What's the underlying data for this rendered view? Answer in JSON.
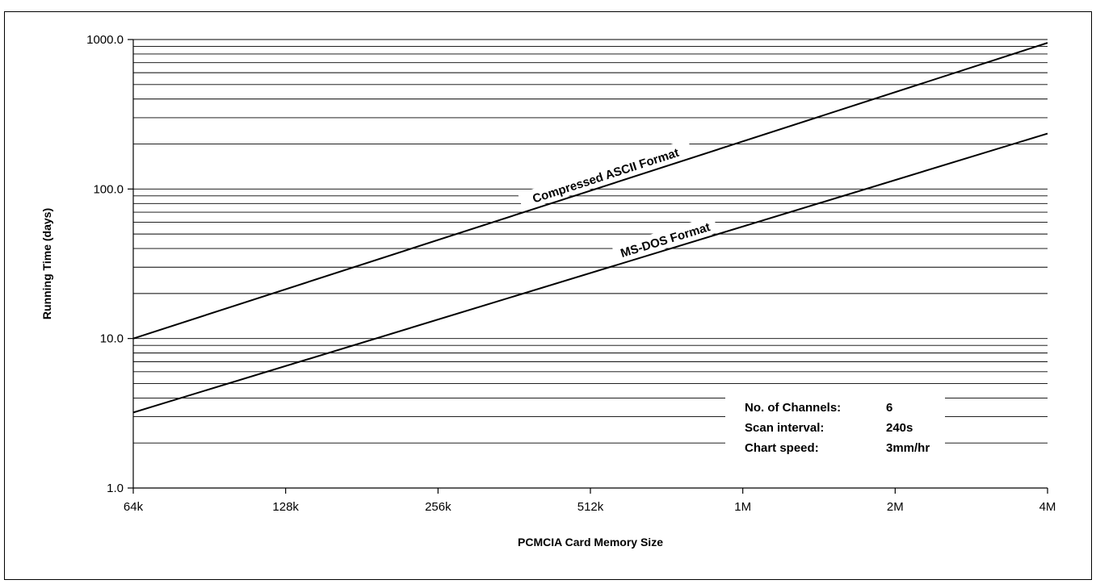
{
  "chart_data": {
    "type": "line",
    "xlabel": "PCMCIA Card Memory Size",
    "ylabel": "Running Time (days)",
    "x_scale": "log2",
    "y_scale": "log10",
    "x_ticks": [
      {
        "value": 65536,
        "label": "64k"
      },
      {
        "value": 131072,
        "label": "128k"
      },
      {
        "value": 262144,
        "label": "256k"
      },
      {
        "value": 524288,
        "label": "512k"
      },
      {
        "value": 1048576,
        "label": "1M"
      },
      {
        "value": 2097152,
        "label": "2M"
      },
      {
        "value": 4194304,
        "label": "4M"
      }
    ],
    "y_ticks": [
      {
        "value": 1,
        "label": "1.0"
      },
      {
        "value": 10,
        "label": "10.0"
      },
      {
        "value": 100,
        "label": "100.0"
      },
      {
        "value": 1000,
        "label": "1000.0"
      }
    ],
    "xlim": [
      65536,
      4194304
    ],
    "ylim": [
      1,
      1000
    ],
    "grid": true,
    "series": [
      {
        "name": "Compressed ASCII Format",
        "x": [
          65536,
          4194304
        ],
        "y": [
          10,
          950
        ]
      },
      {
        "name": "MS-DOS Format",
        "x": [
          65536,
          4194304
        ],
        "y": [
          3.2,
          235
        ]
      }
    ],
    "info_box": [
      {
        "label": "No. of Channels:",
        "value": "6"
      },
      {
        "label": "Scan interval:",
        "value": "240s"
      },
      {
        "label": "Chart speed:",
        "value": "3mm/hr"
      }
    ]
  }
}
